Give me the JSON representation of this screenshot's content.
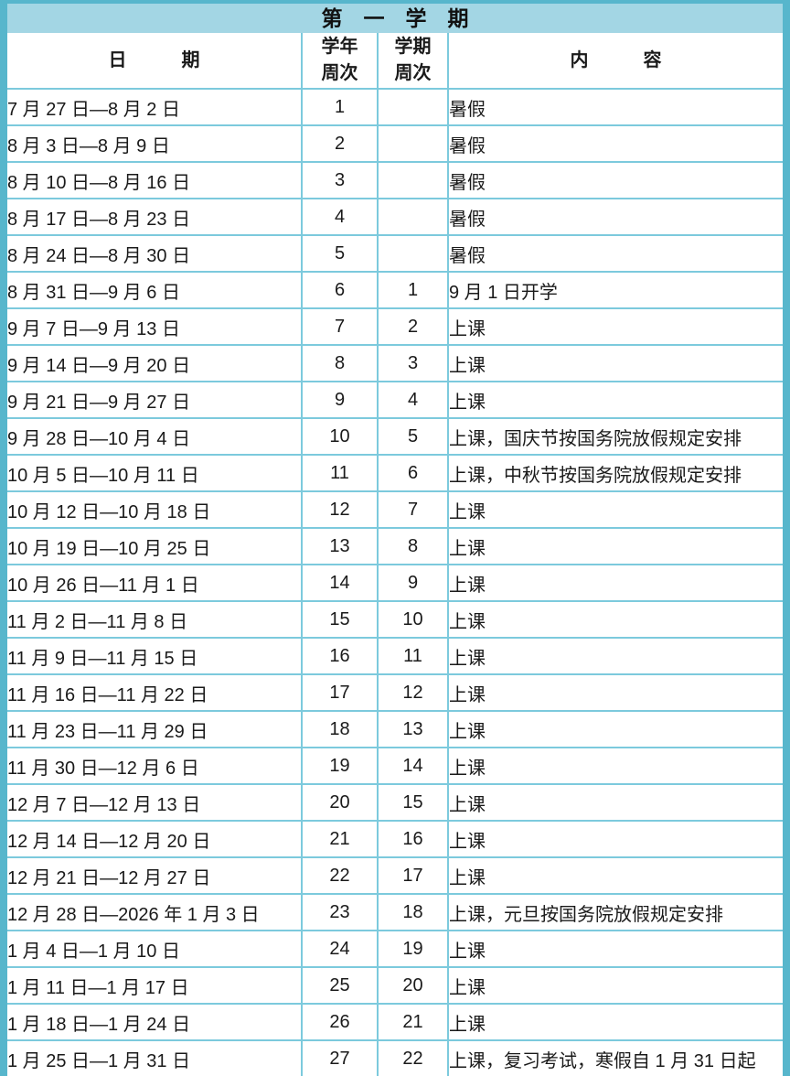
{
  "title": "第　一　学　期",
  "colors": {
    "frame_border": "#57b6cc",
    "title_background": "#a3d6e4",
    "grid_line": "#7ccadd",
    "cell_background": "#ffffff",
    "text": "#1a1a1a"
  },
  "table": {
    "headers": {
      "date": "日　　　期",
      "year_week": "学年\n周次",
      "semester_week": "学期\n周次",
      "content": "内　　　容"
    },
    "rows": [
      {
        "date": "7 月 27 日—8 月 2 日",
        "year_week": "1",
        "semester_week": "",
        "content": "暑假"
      },
      {
        "date": "8 月 3 日—8 月 9 日",
        "year_week": "2",
        "semester_week": "",
        "content": "暑假"
      },
      {
        "date": "8 月 10 日—8 月 16 日",
        "year_week": "3",
        "semester_week": "",
        "content": "暑假"
      },
      {
        "date": "8 月 17 日—8 月 23 日",
        "year_week": "4",
        "semester_week": "",
        "content": "暑假"
      },
      {
        "date": "8 月 24 日—8 月 30 日",
        "year_week": "5",
        "semester_week": "",
        "content": "暑假"
      },
      {
        "date": "8 月 31 日—9 月 6 日",
        "year_week": "6",
        "semester_week": "1",
        "content": "9 月 1 日开学"
      },
      {
        "date": "9 月 7 日—9 月 13 日",
        "year_week": "7",
        "semester_week": "2",
        "content": "上课"
      },
      {
        "date": "9 月 14 日—9 月 20 日",
        "year_week": "8",
        "semester_week": "3",
        "content": "上课"
      },
      {
        "date": "9 月 21 日—9 月 27 日",
        "year_week": "9",
        "semester_week": "4",
        "content": "上课"
      },
      {
        "date": "9 月 28 日—10 月 4 日",
        "year_week": "10",
        "semester_week": "5",
        "content": "上课，国庆节按国务院放假规定安排"
      },
      {
        "date": "10 月 5 日—10 月 11 日",
        "year_week": "11",
        "semester_week": "6",
        "content": "上课，中秋节按国务院放假规定安排"
      },
      {
        "date": "10 月 12 日—10 月 18 日",
        "year_week": "12",
        "semester_week": "7",
        "content": "上课"
      },
      {
        "date": "10 月 19 日—10 月 25 日",
        "year_week": "13",
        "semester_week": "8",
        "content": "上课"
      },
      {
        "date": "10 月 26 日—11 月 1 日",
        "year_week": "14",
        "semester_week": "9",
        "content": "上课"
      },
      {
        "date": "11 月 2 日—11 月 8 日",
        "year_week": "15",
        "semester_week": "10",
        "content": "上课"
      },
      {
        "date": "11 月 9 日—11 月 15 日",
        "year_week": "16",
        "semester_week": "11",
        "content": "上课"
      },
      {
        "date": "11 月 16 日—11 月 22 日",
        "year_week": "17",
        "semester_week": "12",
        "content": "上课"
      },
      {
        "date": "11 月 23 日—11 月 29 日",
        "year_week": "18",
        "semester_week": "13",
        "content": "上课"
      },
      {
        "date": "11 月 30 日—12 月 6 日",
        "year_week": "19",
        "semester_week": "14",
        "content": "上课"
      },
      {
        "date": "12 月 7 日—12 月 13 日",
        "year_week": "20",
        "semester_week": "15",
        "content": "上课"
      },
      {
        "date": "12 月 14 日—12 月 20 日",
        "year_week": "21",
        "semester_week": "16",
        "content": "上课"
      },
      {
        "date": "12 月 21 日—12 月 27 日",
        "year_week": "22",
        "semester_week": "17",
        "content": "上课"
      },
      {
        "date": "12 月 28 日—2026 年 1 月 3 日",
        "year_week": "23",
        "semester_week": "18",
        "content": "上课，元旦按国务院放假规定安排"
      },
      {
        "date": "1 月 4 日—1 月 10 日",
        "year_week": "24",
        "semester_week": "19",
        "content": "上课"
      },
      {
        "date": "1 月 11 日—1 月 17 日",
        "year_week": "25",
        "semester_week": "20",
        "content": "上课"
      },
      {
        "date": "1 月 18 日—1 月 24 日",
        "year_week": "26",
        "semester_week": "21",
        "content": "上课"
      },
      {
        "date": "1 月 25 日—1 月 31 日",
        "year_week": "27",
        "semester_week": "22",
        "content": "上课，复习考试，寒假自 1 月 31 日起"
      }
    ]
  }
}
